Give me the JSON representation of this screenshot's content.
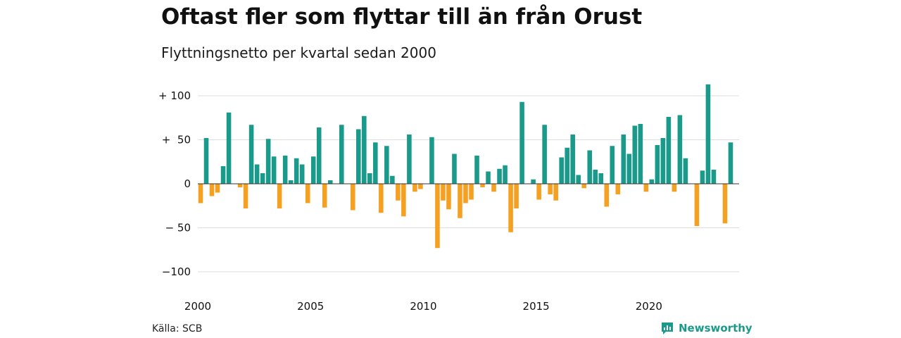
{
  "chart_data": {
    "type": "bar",
    "title": "Oftast fler som flyttar till än från Orust",
    "subtitle": "Flyttningsnetto per kvartal sedan 2000",
    "xlabel": "",
    "ylabel": "",
    "ylim": [
      -100,
      100
    ],
    "yticks": [
      100,
      50,
      0,
      -50,
      -100
    ],
    "yticklabels": [
      "+ 100",
      "+  50",
      "0",
      "− 50",
      "−100"
    ],
    "xticks": [
      2000,
      2005,
      2010,
      2015,
      2020
    ],
    "grid": true,
    "legend": "none",
    "start_year": 2000,
    "end_year": 2023,
    "quarters_per_year": 4,
    "positive_color": "#1a9a8a",
    "negative_color": "#f4a020",
    "series": [
      {
        "values": [
          -22,
          52,
          -14,
          -10,
          20,
          81,
          0,
          -4,
          -28,
          67,
          22,
          12,
          51,
          31,
          -28,
          32,
          4,
          29,
          22,
          -22,
          31,
          64,
          -27,
          4,
          0,
          67,
          0,
          -30,
          62,
          77,
          12,
          47,
          -33,
          43,
          9,
          -19,
          -37,
          56,
          -9,
          -6,
          0,
          53,
          -73,
          -19,
          -29,
          34,
          -39,
          -22,
          -18,
          32,
          -4,
          14,
          -9,
          17,
          21,
          -55,
          -28,
          93,
          0,
          5,
          -18,
          67,
          -12,
          -19,
          30,
          41,
          56,
          10,
          -5,
          38,
          16,
          12,
          -26,
          43,
          -12,
          56,
          34,
          66,
          68,
          -9,
          5,
          44,
          52,
          76,
          -9,
          78,
          29,
          0,
          -48,
          15,
          113,
          16,
          0,
          -45,
          47,
          0
        ]
      }
    ]
  },
  "footer": {
    "source": "Källa: SCB",
    "brand": "Newsworthy",
    "brand_icon": "newsworthy-logo-icon"
  }
}
